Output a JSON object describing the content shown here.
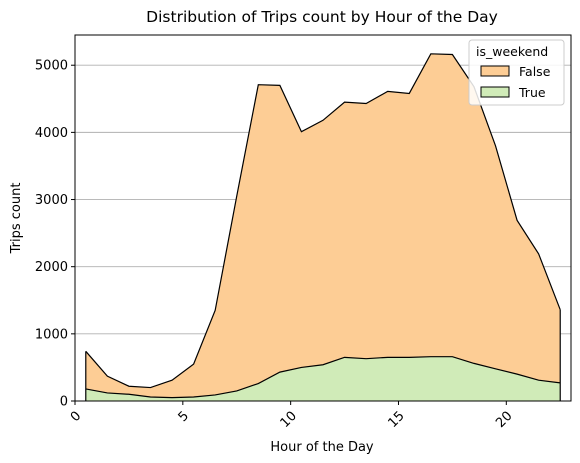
{
  "chart_data": {
    "type": "area",
    "stacked": true,
    "title": "Distribution of Trips count by Hour of the Day",
    "xlabel": "Hour of the Day",
    "ylabel": "Trips count",
    "xlim": [
      0,
      23
    ],
    "ylim": [
      0,
      5450
    ],
    "xticks": [
      0,
      5,
      10,
      15,
      20
    ],
    "yticks": [
      0,
      1000,
      2000,
      3000,
      4000,
      5000
    ],
    "x_tick_rotation": 45,
    "grid": "y",
    "legend": {
      "title": "is_weekend",
      "placement": "top-right"
    },
    "x": [
      0.5,
      1.5,
      2.5,
      3.5,
      4.5,
      5.5,
      6.5,
      7.5,
      8.5,
      9.5,
      10.5,
      11.5,
      12.5,
      13.5,
      14.5,
      15.5,
      16.5,
      17.5,
      18.5,
      19.5,
      20.5,
      21.5,
      22.5
    ],
    "series": [
      {
        "name": "False",
        "color": "#fdcd95",
        "values": [
          560,
          250,
          120,
          140,
          260,
          490,
          1260,
          2900,
          4450,
          4270,
          3510,
          3640,
          3800,
          3800,
          3960,
          3930,
          4510,
          4500,
          4120,
          3320,
          2290,
          1880,
          1090
        ]
      },
      {
        "name": "True",
        "color": "#d0ebb8",
        "values": [
          180,
          120,
          100,
          60,
          50,
          60,
          90,
          150,
          260,
          430,
          500,
          540,
          650,
          630,
          650,
          650,
          660,
          660,
          560,
          480,
          400,
          310,
          270
        ]
      }
    ]
  }
}
